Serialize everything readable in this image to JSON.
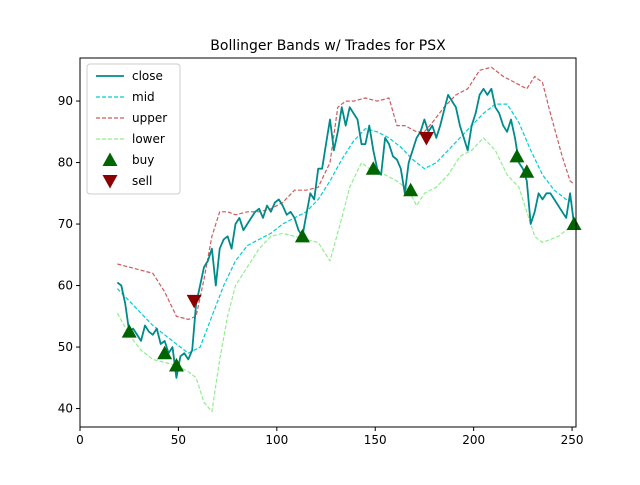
{
  "chart_data": {
    "type": "line",
    "title": "Bollinger Bands w/ Trades for PSX",
    "xlabel": "",
    "ylabel": "",
    "xlim": [
      0,
      252
    ],
    "ylim": [
      37,
      97
    ],
    "x_ticks": [
      0,
      50,
      100,
      150,
      200,
      250
    ],
    "y_ticks": [
      40,
      50,
      60,
      70,
      80,
      90
    ],
    "grid": false,
    "legend_position": "top-left",
    "series": [
      {
        "name": "close",
        "style": "solid",
        "color": "#008b8b",
        "x": [
          19,
          21,
          23,
          25,
          27,
          29,
          31,
          33,
          35,
          37,
          39,
          41,
          43,
          45,
          47,
          49,
          51,
          53,
          55,
          57,
          59,
          61,
          63,
          65,
          67,
          69,
          71,
          73,
          75,
          77,
          79,
          81,
          83,
          85,
          87,
          89,
          91,
          93,
          95,
          97,
          99,
          101,
          103,
          105,
          107,
          109,
          111,
          113,
          115,
          117,
          119,
          121,
          123,
          125,
          127,
          129,
          131,
          133,
          135,
          137,
          139,
          141,
          143,
          145,
          147,
          149,
          151,
          153,
          155,
          157,
          159,
          161,
          163,
          165,
          167,
          169,
          171,
          173,
          175,
          177,
          179,
          181,
          183,
          185,
          187,
          189,
          191,
          193,
          195,
          197,
          199,
          201,
          203,
          205,
          207,
          209,
          211,
          213,
          215,
          217,
          219,
          221,
          223,
          225,
          227,
          229,
          231,
          233,
          235,
          237,
          239,
          241,
          243,
          245,
          247,
          249,
          251
        ],
        "values": [
          60.5,
          60,
          57,
          52.5,
          53,
          52,
          51,
          53.5,
          52.5,
          52,
          53,
          50.5,
          51,
          49,
          50,
          45,
          48.5,
          49,
          48,
          49.5,
          57,
          60,
          63,
          64,
          66,
          60,
          66,
          67.5,
          68,
          66,
          70,
          71,
          69,
          70,
          71,
          72,
          72.5,
          71,
          73,
          72,
          73.5,
          74,
          73,
          71.5,
          72,
          71,
          69,
          68,
          71.5,
          75,
          74,
          79,
          79,
          83,
          87,
          82,
          85,
          89,
          86,
          89,
          88,
          87,
          83,
          83,
          86,
          82,
          79,
          78,
          84,
          83,
          81,
          80.5,
          79,
          75,
          80,
          82,
          84,
          85,
          87,
          85,
          86,
          84,
          86,
          88.5,
          91,
          90,
          89,
          86,
          84,
          82,
          86,
          88,
          91,
          92,
          91,
          92,
          89,
          88,
          86,
          85,
          87,
          84,
          80,
          79,
          77,
          70,
          72,
          75,
          74,
          75,
          75,
          74,
          73,
          72,
          71,
          75,
          70
        ],
        "labels": []
      },
      {
        "name": "mid",
        "style": "dashed",
        "color": "#00ced1",
        "x": [
          19,
          25,
          31,
          37,
          43,
          49,
          55,
          61,
          67,
          73,
          79,
          85,
          91,
          97,
          103,
          109,
          115,
          121,
          127,
          133,
          139,
          145,
          151,
          157,
          163,
          169,
          175,
          181,
          187,
          193,
          199,
          205,
          211,
          217,
          223,
          229,
          235,
          241,
          247,
          251
        ],
        "values": [
          59.5,
          57.5,
          55.5,
          53.5,
          52,
          50.5,
          49,
          50,
          55,
          60,
          64,
          66.5,
          67.5,
          68.5,
          70,
          71,
          72,
          74,
          77,
          80.5,
          83.5,
          85.5,
          85,
          84,
          82.5,
          80.5,
          79,
          80,
          82,
          84,
          86,
          88,
          89.5,
          89.5,
          86.5,
          82,
          78,
          75.5,
          74,
          73.5
        ],
        "labels": []
      },
      {
        "name": "upper",
        "style": "dashed",
        "color": "#cd5c5c",
        "x": [
          19,
          25,
          31,
          37,
          43,
          49,
          55,
          59,
          63,
          67,
          71,
          75,
          79,
          85,
          91,
          97,
          103,
          109,
          115,
          121,
          127,
          131,
          135,
          139,
          145,
          151,
          157,
          161,
          165,
          171,
          175,
          179,
          185,
          191,
          197,
          203,
          209,
          215,
          221,
          227,
          231,
          235,
          239,
          245,
          249,
          251
        ],
        "values": [
          63.5,
          63,
          62.5,
          62,
          59,
          55,
          54.5,
          55,
          61,
          68,
          72,
          72,
          71.5,
          72,
          72,
          72.5,
          73.5,
          75.5,
          75.5,
          76,
          80,
          89,
          90,
          90,
          90.5,
          90,
          90.5,
          86,
          86,
          85,
          85,
          86.5,
          89,
          91,
          92,
          95,
          95.5,
          94,
          93,
          92,
          94,
          93,
          88,
          81,
          77,
          76.5
        ],
        "labels": []
      },
      {
        "name": "lower",
        "style": "dashed",
        "color": "#90ee90",
        "x": [
          19,
          25,
          31,
          37,
          43,
          49,
          55,
          59,
          63,
          67,
          71,
          75,
          79,
          85,
          91,
          97,
          103,
          109,
          115,
          121,
          127,
          133,
          137,
          143,
          149,
          155,
          161,
          167,
          171,
          175,
          181,
          187,
          193,
          199,
          205,
          211,
          217,
          223,
          227,
          231,
          235,
          239,
          243,
          247,
          251
        ],
        "values": [
          55.5,
          52,
          49.5,
          48,
          47.5,
          47,
          46,
          45,
          41,
          39.5,
          48,
          55,
          60,
          63,
          66,
          68,
          68.5,
          68,
          67.5,
          67,
          64,
          71,
          76,
          80,
          78.5,
          78,
          77,
          75.5,
          73,
          75,
          76,
          78,
          81,
          82,
          84,
          82,
          78,
          76,
          72,
          68,
          67,
          67.5,
          68,
          69,
          69.5
        ],
        "labels": []
      }
    ],
    "trades": {
      "buy": {
        "name": "buy",
        "color": "#006400",
        "x": [
          25,
          43,
          49,
          113,
          149,
          168,
          222,
          227,
          251
        ],
        "values": [
          52.5,
          49,
          47,
          68,
          79,
          75.5,
          81,
          78.5,
          70
        ]
      },
      "sell": {
        "name": "sell",
        "color": "#8b0000",
        "x": [
          58,
          176
        ],
        "values": [
          57.5,
          84
        ]
      }
    }
  }
}
